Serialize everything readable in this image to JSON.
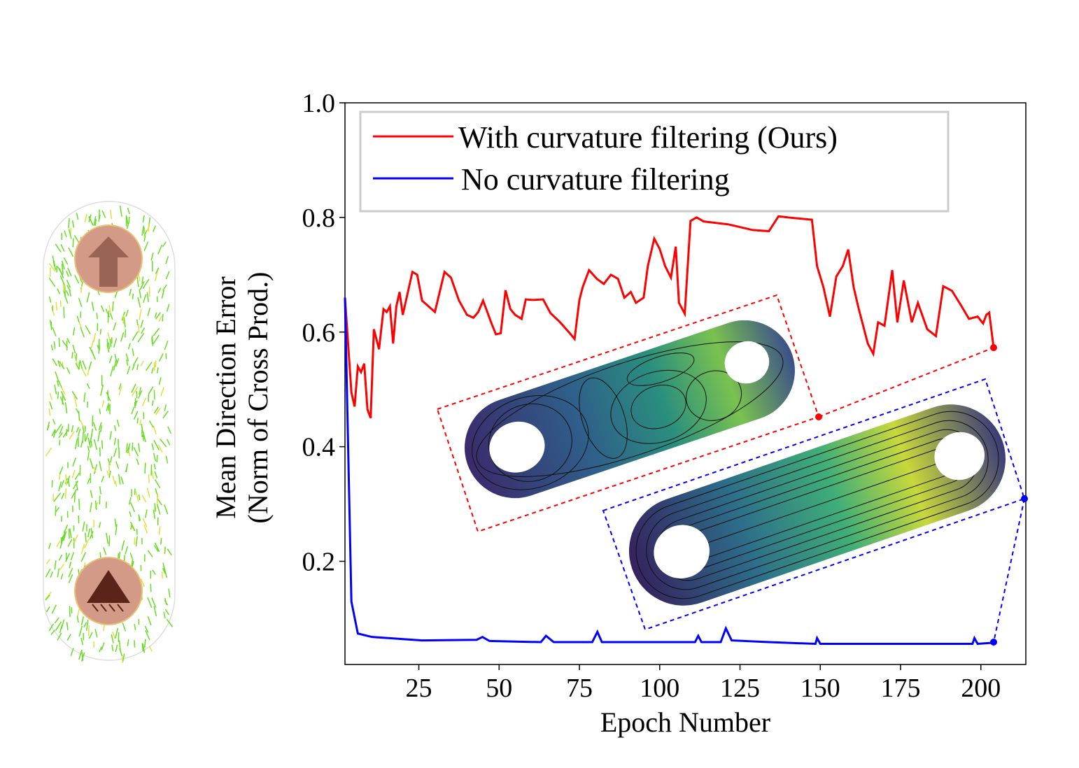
{
  "chart_data": {
    "type": "line",
    "xlabel": "Epoch Number",
    "ylabel": [
      "Mean Direction Error",
      "(Norm of Cross Prod.)"
    ],
    "xlim": [
      2,
      214
    ],
    "ylim": [
      0.02,
      1.0
    ],
    "xticks": [
      25,
      50,
      75,
      100,
      125,
      150,
      175,
      200
    ],
    "yticks": [
      0.2,
      0.4,
      0.6,
      0.8,
      {
        "value": 1.0,
        "label": "1.0"
      }
    ],
    "legend": "upper left",
    "series": [
      {
        "name": "With curvature filtering (Ours)",
        "color": "#ff0000",
        "x": [
          2,
          4,
          5,
          6,
          7,
          8,
          9,
          10,
          11,
          12.6,
          14,
          15,
          16,
          17,
          18,
          19,
          20,
          21,
          23,
          24.5,
          26,
          28,
          30,
          31.5,
          33,
          35,
          37.5,
          40,
          42,
          43.5,
          45,
          46,
          47.5,
          49,
          50.5,
          52,
          53.5,
          55,
          57,
          58.3,
          60.4,
          63.7,
          66,
          69,
          72,
          73.5,
          75,
          76,
          78,
          80.4,
          82.6,
          84.8,
          87,
          89,
          91,
          92.6,
          95,
          96.3,
          98.3,
          100,
          101.7,
          103.5,
          105,
          106,
          107.8,
          109.6,
          111.5,
          113.7,
          121.3,
          129,
          134,
          137,
          140,
          147.4,
          149,
          151,
          153,
          155,
          157,
          158.7,
          160.4,
          162,
          164.8,
          166.5,
          168,
          170,
          172.4,
          174,
          176,
          178.5,
          180.4,
          183.3,
          186,
          188.3,
          191,
          194,
          196.3,
          199,
          200.7,
          201.7,
          202.6,
          204
        ],
        "values": [
          0.66,
          0.495,
          0.47,
          0.54,
          0.53,
          0.545,
          0.465,
          0.45,
          0.605,
          0.57,
          0.64,
          0.635,
          0.645,
          0.58,
          0.645,
          0.67,
          0.63,
          0.655,
          0.705,
          0.7,
          0.655,
          0.645,
          0.635,
          0.67,
          0.705,
          0.695,
          0.655,
          0.63,
          0.625,
          0.635,
          0.655,
          0.64,
          0.617,
          0.596,
          0.598,
          0.673,
          0.64,
          0.63,
          0.623,
          0.657,
          0.656,
          0.657,
          0.633,
          0.617,
          0.598,
          0.588,
          0.656,
          0.678,
          0.708,
          0.693,
          0.684,
          0.7,
          0.693,
          0.66,
          0.67,
          0.651,
          0.66,
          0.715,
          0.763,
          0.745,
          0.715,
          0.695,
          0.749,
          0.651,
          0.632,
          0.794,
          0.8,
          0.793,
          0.788,
          0.778,
          0.776,
          0.802,
          0.8,
          0.796,
          0.715,
          0.678,
          0.627,
          0.697,
          0.715,
          0.744,
          0.678,
          0.64,
          0.58,
          0.562,
          0.617,
          0.611,
          0.708,
          0.617,
          0.69,
          0.617,
          0.651,
          0.605,
          0.593,
          0.68,
          0.672,
          0.645,
          0.623,
          0.627,
          0.615,
          0.63,
          0.634,
          0.572
        ]
      },
      {
        "name": "No curvature filtering",
        "color": "#0000ff",
        "x": [
          2,
          4,
          6,
          10.4,
          26,
          43,
          44.8,
          47,
          63,
          64.6,
          67,
          79,
          80.6,
          82,
          111,
          112,
          113,
          119,
          120.6,
          122.4,
          134,
          148.5,
          149,
          150,
          197.4,
          198,
          199,
          204
        ],
        "values": [
          0.66,
          0.13,
          0.074,
          0.068,
          0.062,
          0.063,
          0.068,
          0.061,
          0.059,
          0.07,
          0.059,
          0.059,
          0.077,
          0.059,
          0.059,
          0.07,
          0.059,
          0.059,
          0.083,
          0.062,
          0.059,
          0.056,
          0.066,
          0.056,
          0.056,
          0.066,
          0.056,
          0.058
        ]
      }
    ]
  }
}
